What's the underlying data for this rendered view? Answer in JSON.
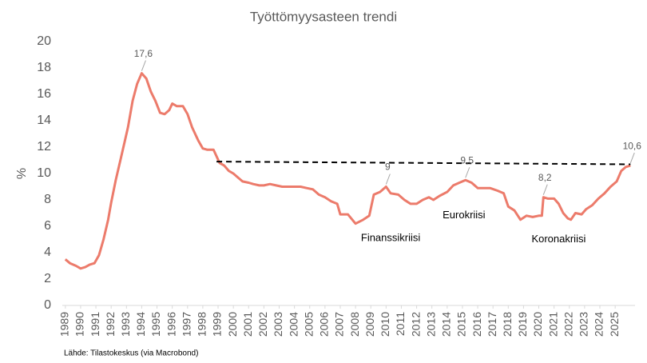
{
  "chart_data": {
    "type": "line",
    "title": "Työttömyysasteen trendi",
    "ylabel": "%",
    "source": "Lähde: Tilastokeskus (via Macrobond)",
    "series": [
      {
        "color": "#ec7b6b",
        "x": [
          1989.0,
          1989.3,
          1989.7,
          1990.0,
          1990.3,
          1990.6,
          1990.9,
          1991.2,
          1991.5,
          1991.8,
          1992.0,
          1992.3,
          1992.6,
          1992.9,
          1993.1,
          1993.4,
          1993.7,
          1994.0,
          1994.3,
          1994.6,
          1994.9,
          1995.2,
          1995.5,
          1995.8,
          1996.0,
          1996.3,
          1996.7,
          1997.0,
          1997.3,
          1997.7,
          1998.0,
          1998.3,
          1998.7,
          1998.9,
          1999.1,
          1999.4,
          1999.7,
          2000.0,
          2000.3,
          2000.6,
          2001.0,
          2001.3,
          2001.7,
          2002.0,
          2002.4,
          2002.8,
          2003.2,
          2003.6,
          2004.0,
          2004.4,
          2004.8,
          2005.2,
          2005.6,
          2006.0,
          2006.4,
          2006.8,
          2007.0,
          2007.5,
          2008.0,
          2008.5,
          2008.9,
          2009.2,
          2009.6,
          2010.0,
          2010.3,
          2010.8,
          2011.2,
          2011.6,
          2012.0,
          2012.4,
          2012.8,
          2013.1,
          2013.5,
          2014.0,
          2014.4,
          2014.8,
          2015.2,
          2015.6,
          2016.0,
          2016.4,
          2016.8,
          2017.3,
          2017.7,
          2018.0,
          2018.4,
          2018.8,
          2019.2,
          2019.6,
          2020.0,
          2020.2,
          2020.3,
          2020.6,
          2021.0,
          2021.3,
          2021.6,
          2021.9,
          2022.1,
          2022.4,
          2022.8,
          2023.1,
          2023.5,
          2023.9,
          2024.3,
          2024.7,
          2025.1,
          2025.4,
          2025.7,
          2026.0
        ],
        "values": [
          3.5,
          3.2,
          3.0,
          2.8,
          2.9,
          3.1,
          3.2,
          3.8,
          5.0,
          6.5,
          7.8,
          9.5,
          11.0,
          12.5,
          13.5,
          15.5,
          16.8,
          17.6,
          17.2,
          16.2,
          15.5,
          14.6,
          14.5,
          14.8,
          15.3,
          15.1,
          15.1,
          14.5,
          13.5,
          12.5,
          11.9,
          11.8,
          11.8,
          11.3,
          10.8,
          10.6,
          10.2,
          10.0,
          9.7,
          9.4,
          9.3,
          9.2,
          9.1,
          9.1,
          9.2,
          9.1,
          9.0,
          9.0,
          9.0,
          9.0,
          8.9,
          8.8,
          8.4,
          8.2,
          7.9,
          7.7,
          6.9,
          6.9,
          6.2,
          6.5,
          6.8,
          8.4,
          8.6,
          9.0,
          8.5,
          8.4,
          8.0,
          7.7,
          7.7,
          8.0,
          8.2,
          8.0,
          8.3,
          8.6,
          9.1,
          9.3,
          9.5,
          9.3,
          8.9,
          8.9,
          8.9,
          8.7,
          8.5,
          7.5,
          7.2,
          6.5,
          6.8,
          6.7,
          6.8,
          6.8,
          8.2,
          8.1,
          8.1,
          7.7,
          7.0,
          6.6,
          6.5,
          7.0,
          6.9,
          7.3,
          7.6,
          8.1,
          8.5,
          9.0,
          9.4,
          10.2,
          10.5,
          10.6
        ]
      }
    ],
    "trend_line": {
      "color": "#000000",
      "x": [
        1998.9,
        2026.0
      ],
      "values": [
        10.9,
        10.7
      ]
    },
    "annotations": [
      {
        "text": "17,6",
        "x": 1994.0,
        "y": 17.6
      },
      {
        "text": "9",
        "x": 2010.0,
        "y": 9.0
      },
      {
        "text": "9,5",
        "x": 2015.2,
        "y": 9.5
      },
      {
        "text": "8,2",
        "x": 2020.3,
        "y": 8.2
      },
      {
        "text": "10,6",
        "x": 2026.0,
        "y": 10.6
      }
    ],
    "notes": [
      {
        "text": "Finanssikriisi",
        "x": 2010.3,
        "y": 5.1
      },
      {
        "text": "Eurokriisi",
        "x": 2015.1,
        "y": 6.8
      },
      {
        "text": "Koronakriisi",
        "x": 2021.3,
        "y": 5.0
      }
    ],
    "xlim": [
      1988.8,
      2026.3
    ],
    "xticks": [
      1989,
      1990,
      1991,
      1992,
      1993,
      1994,
      1995,
      1996,
      1997,
      1998,
      1999,
      2000,
      2001,
      2002,
      2003,
      2004,
      2005,
      2006,
      2007,
      2008,
      2009,
      2010,
      2011,
      2012,
      2013,
      2014,
      2015,
      2016,
      2017,
      2018,
      2019,
      2020,
      2021,
      2022,
      2023,
      2024,
      2025
    ],
    "ylim": [
      0,
      20
    ],
    "yticks": [
      0,
      2,
      4,
      6,
      8,
      10,
      12,
      14,
      16,
      18,
      20
    ],
    "grid": false
  }
}
